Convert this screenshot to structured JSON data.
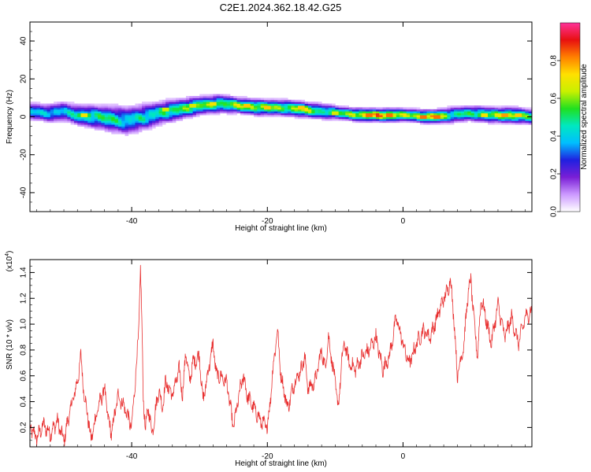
{
  "figure": {
    "title": "C2E1.2024.362.18.42.G25"
  },
  "chart_data": [
    {
      "type": "heatmap",
      "xlabel": "Height of straight line (km)",
      "ylabel": "Frequency (Hz)",
      "xlim": [
        -55,
        19
      ],
      "ylim": [
        -50,
        50
      ],
      "xticks": [
        "-40",
        "-20",
        "0"
      ],
      "yticks": [
        "40",
        "20",
        "0",
        "-20",
        "-40"
      ],
      "colorbar": {
        "label": "Normalized spectral amplitude",
        "range": [
          0,
          1
        ],
        "ticks": [
          "0.0",
          "0.2",
          "0.4",
          "0.6",
          "0.8"
        ],
        "colors": [
          "#ffffff",
          "#cc99ff",
          "#7a1fd6",
          "#2020e0",
          "#00bfff",
          "#00e8c0",
          "#20e020",
          "#c8f000",
          "#ffe000",
          "#ff8000",
          "#e81010",
          "#ff3399"
        ]
      },
      "ridge": [
        {
          "x": -55,
          "f": 3,
          "a": 0.45,
          "w": 3.5
        },
        {
          "x": -52,
          "f": 2,
          "a": 0.5,
          "w": 3.5
        },
        {
          "x": -50,
          "f": 3,
          "a": 0.45,
          "w": 4
        },
        {
          "x": -48,
          "f": 1,
          "a": 0.55,
          "w": 4
        },
        {
          "x": -45,
          "f": 0,
          "a": 0.6,
          "w": 4.5
        },
        {
          "x": -43,
          "f": -1,
          "a": 0.6,
          "w": 5
        },
        {
          "x": -41,
          "f": -2,
          "a": 0.5,
          "w": 5.5
        },
        {
          "x": -38,
          "f": 0,
          "a": 0.55,
          "w": 5
        },
        {
          "x": -36,
          "f": 2,
          "a": 0.55,
          "w": 4.5
        },
        {
          "x": -33,
          "f": 4,
          "a": 0.65,
          "w": 4
        },
        {
          "x": -30,
          "f": 6,
          "a": 0.7,
          "w": 3.5
        },
        {
          "x": -27,
          "f": 7,
          "a": 0.65,
          "w": 3.5
        },
        {
          "x": -24,
          "f": 6,
          "a": 0.75,
          "w": 3
        },
        {
          "x": -21,
          "f": 5,
          "a": 0.8,
          "w": 3
        },
        {
          "x": -18,
          "f": 5,
          "a": 0.7,
          "w": 3
        },
        {
          "x": -15,
          "f": 4,
          "a": 0.8,
          "w": 3
        },
        {
          "x": -12,
          "f": 3,
          "a": 0.6,
          "w": 3
        },
        {
          "x": -9,
          "f": 2,
          "a": 0.65,
          "w": 2.5
        },
        {
          "x": -6,
          "f": 1,
          "a": 0.9,
          "w": 2.5
        },
        {
          "x": -2,
          "f": 1,
          "a": 0.95,
          "w": 2.5
        },
        {
          "x": 1,
          "f": 1,
          "a": 0.7,
          "w": 2.5
        },
        {
          "x": 4,
          "f": 0,
          "a": 0.95,
          "w": 2.5
        },
        {
          "x": 7,
          "f": 1,
          "a": 0.6,
          "w": 3
        },
        {
          "x": 10,
          "f": 2,
          "a": 0.6,
          "w": 3
        },
        {
          "x": 13,
          "f": 1,
          "a": 0.7,
          "w": 3
        },
        {
          "x": 16,
          "f": 1,
          "a": 0.8,
          "w": 3
        },
        {
          "x": 19,
          "f": 0,
          "a": 0.6,
          "w": 3
        }
      ],
      "hotspots": [
        {
          "x": -47,
          "f": 1,
          "a": 0.85
        },
        {
          "x": -35,
          "f": 4,
          "a": 0.8
        },
        {
          "x": -31,
          "f": 6,
          "a": 0.8
        },
        {
          "x": -28,
          "f": 7,
          "a": 0.85
        },
        {
          "x": -23,
          "f": 6,
          "a": 0.9
        },
        {
          "x": -20,
          "f": 5,
          "a": 0.9
        },
        {
          "x": -15,
          "f": 5,
          "a": 0.9
        },
        {
          "x": -10,
          "f": 2,
          "a": 0.8
        },
        {
          "x": -5,
          "f": 1,
          "a": 1.0
        },
        {
          "x": -2,
          "f": 1,
          "a": 1.0
        },
        {
          "x": 3,
          "f": 0,
          "a": 1.0
        },
        {
          "x": 5,
          "f": 0,
          "a": 1.0
        },
        {
          "x": 12,
          "f": 1,
          "a": 0.85
        },
        {
          "x": 15,
          "f": 1,
          "a": 0.95
        },
        {
          "x": 17,
          "f": 1,
          "a": 0.9
        }
      ]
    },
    {
      "type": "line",
      "xlabel": "Height of straight line (km)",
      "ylabel": "SNR (10 * v/v)",
      "multiplier_label": "(x10",
      "multiplier_exp": "4",
      "multiplier_close": ")",
      "xlim": [
        -55,
        19
      ],
      "ylim": [
        0.05,
        1.5
      ],
      "xticks": [
        "-40",
        "-20",
        "0"
      ],
      "yticks": [
        "1.4",
        "1.2",
        "1.0",
        "0.8",
        "0.6",
        "0.4",
        "0.2"
      ],
      "series": [
        {
          "color": "#e83030",
          "x": [
            -55,
            -54,
            -53,
            -52,
            -51,
            -50,
            -49,
            -48,
            -47.5,
            -47,
            -46.5,
            -46,
            -45,
            -44,
            -43.5,
            -43,
            -42,
            -41,
            -40,
            -39.5,
            -39,
            -38.7,
            -38.5,
            -38.3,
            -38,
            -37.5,
            -37,
            -36,
            -35.5,
            -35,
            -34,
            -33,
            -32.5,
            -32,
            -31.5,
            -31,
            -30,
            -29.5,
            -29,
            -28.5,
            -28,
            -27.5,
            -27,
            -26,
            -25,
            -24,
            -23.5,
            -23,
            -22,
            -21,
            -20,
            -19.5,
            -19,
            -18.5,
            -18,
            -17,
            -16,
            -15,
            -14.5,
            -14,
            -13,
            -12,
            -11.5,
            -11,
            -10,
            -9.5,
            -9,
            -8.5,
            -8,
            -7,
            -6,
            -5,
            -4,
            -3,
            -2,
            -1,
            0,
            0.5,
            1,
            2,
            3,
            4,
            5,
            6,
            6.5,
            7,
            7.5,
            8,
            9,
            9.5,
            10,
            10.5,
            11,
            11.5,
            12,
            13,
            13.5,
            14,
            15,
            16,
            17,
            18,
            19
          ],
          "y": [
            0.2,
            0.12,
            0.22,
            0.15,
            0.25,
            0.1,
            0.35,
            0.55,
            0.75,
            0.45,
            0.3,
            0.1,
            0.35,
            0.5,
            0.28,
            0.15,
            0.45,
            0.35,
            0.2,
            0.55,
            0.9,
            1.45,
            1.0,
            0.45,
            0.2,
            0.35,
            0.15,
            0.5,
            0.35,
            0.55,
            0.45,
            0.65,
            0.45,
            0.8,
            0.55,
            0.7,
            0.75,
            0.4,
            0.55,
            0.7,
            0.85,
            0.6,
            0.6,
            0.55,
            0.2,
            0.5,
            0.6,
            0.45,
            0.35,
            0.25,
            0.2,
            0.45,
            0.75,
            0.95,
            0.6,
            0.35,
            0.55,
            0.65,
            0.75,
            0.5,
            0.55,
            0.8,
            0.65,
            0.9,
            0.55,
            0.35,
            0.75,
            0.85,
            0.7,
            0.65,
            0.75,
            0.8,
            0.9,
            0.65,
            0.75,
            1.05,
            0.85,
            0.75,
            0.7,
            0.85,
            0.95,
            0.9,
            1.05,
            1.2,
            1.25,
            1.35,
            1.05,
            0.6,
            0.85,
            1.2,
            1.35,
            1.0,
            0.75,
            1.2,
            1.1,
            0.85,
            1.0,
            1.15,
            0.9,
            1.05,
            0.85,
            1.05,
            1.1
          ]
        }
      ]
    }
  ]
}
